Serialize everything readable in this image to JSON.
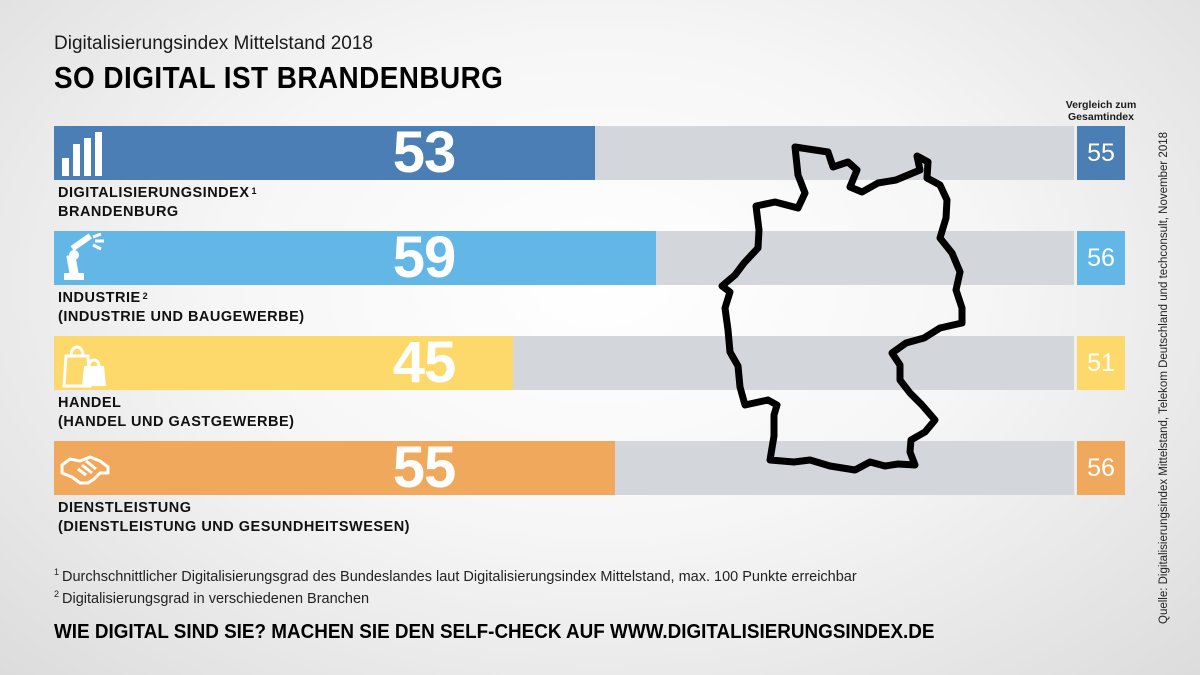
{
  "header": {
    "subtitle": "Digitalisierungsindex Mittelstand 2018",
    "title": "SO DIGITAL IST BRANDENBURG",
    "compare_header": "Vergleich zum Gesamtindex"
  },
  "chart_data": {
    "type": "bar",
    "orientation": "horizontal",
    "title": "SO DIGITAL IST BRANDENBURG",
    "subtitle": "Digitalisierungsindex Mittelstand 2018",
    "xlim": [
      0,
      100
    ],
    "categories": [
      "DIGITALISIERUNGSINDEX BRANDENBURG",
      "INDUSTRIE (INDUSTRIE UND BAUGEWERBE)",
      "HANDEL (HANDEL UND GASTGEWERBE)",
      "DIENSTLEISTUNG (DIENSTLEISTUNG UND GESUNDHEITSWESEN)"
    ],
    "series": [
      {
        "name": "",
        "values": [
          53,
          59,
          45,
          55
        ]
      },
      {
        "name": "Vergleich zum Gesamtindex",
        "values": [
          55,
          56,
          51,
          56
        ]
      }
    ],
    "bars": [
      {
        "value": 53,
        "compare": 55,
        "color": "#4a7eb5",
        "icon": "bar-chart-icon",
        "label_line1": "DIGITALISIERUNGSINDEX",
        "label_sup": "1",
        "label_line2": "BRANDENBURG"
      },
      {
        "value": 59,
        "compare": 56,
        "color": "#62b7e7",
        "icon": "robot-arm-icon",
        "label_line1": "INDUSTRIE",
        "label_sup": "2",
        "label_line2": "(INDUSTRIE UND BAUGEWERBE)"
      },
      {
        "value": 45,
        "compare": 51,
        "color": "#fdd86a",
        "icon": "shopping-bags-icon",
        "label_line1": "HANDEL",
        "label_sup": "",
        "label_line2": "(HANDEL UND GASTGEWERBE)"
      },
      {
        "value": 55,
        "compare": 56,
        "color": "#f0a95c",
        "icon": "handshake-icon",
        "label_line1": "DIENSTLEISTUNG",
        "label_sup": "",
        "label_line2": "(DIENSTLEISTUNG UND GESUNDHEITSWESEN)"
      }
    ],
    "track_color": "#d3d7db",
    "grid": false
  },
  "map": {
    "icon": "germany-outline-icon"
  },
  "footnotes": {
    "f1_mark": "1",
    "f1_text": "Durchschnittlicher Digitalisierungsgrad des Bundeslandes laut Digitalisierungsindex Mittelstand, max. 100 Punkte erreichbar",
    "f2_mark": "2",
    "f2_text": "Digitalisierungsgrad in verschiedenen Branchen"
  },
  "cta": "WIE DIGITAL SIND SIE? MACHEN SIE DEN SELF-CHECK AUF WWW.DIGITALISIERUNGSINDEX.DE",
  "source": "Quelle: Digitalisierungsindex Mittelstand, Telekom Deutschland und techconsult, November 2018"
}
